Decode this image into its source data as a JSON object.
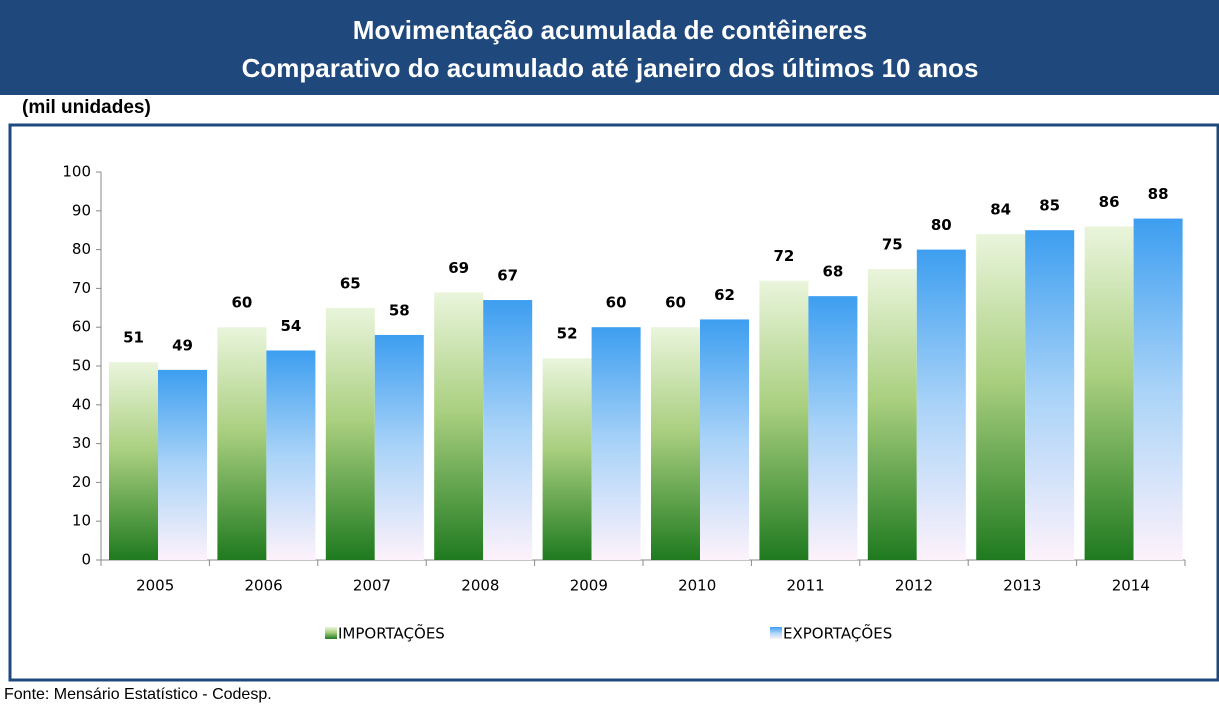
{
  "chart_data": {
    "type": "bar",
    "title": "Movimentação acumulada de contêineres",
    "subtitle": "Comparativo do acumulado até janeiro dos últimos 10 anos",
    "unit_label": "(mil unidades)",
    "source": "Fonte: Mensário Estatístico - Codesp.",
    "categories": [
      "2005",
      "2006",
      "2007",
      "2008",
      "2009",
      "2010",
      "2011",
      "2012",
      "2013",
      "2014"
    ],
    "series": [
      {
        "name": "IMPORTAÇÕES",
        "color": "#1f7a1f",
        "values": [
          51,
          60,
          65,
          69,
          52,
          60,
          72,
          75,
          84,
          86
        ]
      },
      {
        "name": "EXPORTAÇÕES",
        "color": "#3d9ef0",
        "values": [
          49,
          54,
          58,
          67,
          60,
          62,
          68,
          80,
          85,
          88
        ]
      }
    ],
    "ylim": [
      0,
      100
    ],
    "yticks": [
      0,
      10,
      20,
      30,
      40,
      50,
      60,
      70,
      80,
      90,
      100
    ],
    "grid": false
  }
}
